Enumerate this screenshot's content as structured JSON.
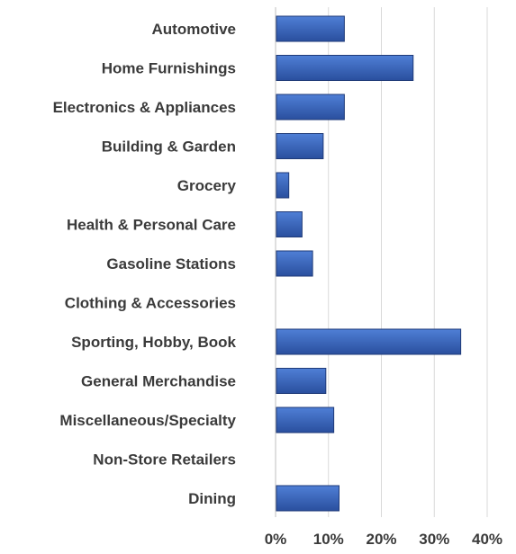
{
  "chart_data": {
    "type": "bar",
    "orientation": "horizontal",
    "categories": [
      "Automotive",
      "Home Furnishings",
      "Electronics & Appliances",
      "Building & Garden",
      "Grocery",
      "Health & Personal Care",
      "Gasoline Stations",
      "Clothing & Accessories",
      "Sporting, Hobby, Book",
      "General Merchandise",
      "Miscellaneous/Specialty",
      "Non-Store Retailers",
      "Dining"
    ],
    "values": [
      13,
      26,
      13,
      9,
      2.5,
      5,
      7,
      0,
      35,
      9.5,
      11,
      0,
      12
    ],
    "xlim": [
      0,
      40
    ],
    "xticks": [
      "0%",
      "10%",
      "20%",
      "30%",
      "40%"
    ],
    "xtick_values": [
      0,
      10,
      20,
      30,
      40
    ],
    "grid": true,
    "legend": "none",
    "colors": {
      "bar_top": "#4f7fd6",
      "bar_bottom": "#2a4f9e",
      "bar_edge": "#1f3a78",
      "text": "#3a3a3a",
      "grid": "#d9d9d9"
    }
  }
}
